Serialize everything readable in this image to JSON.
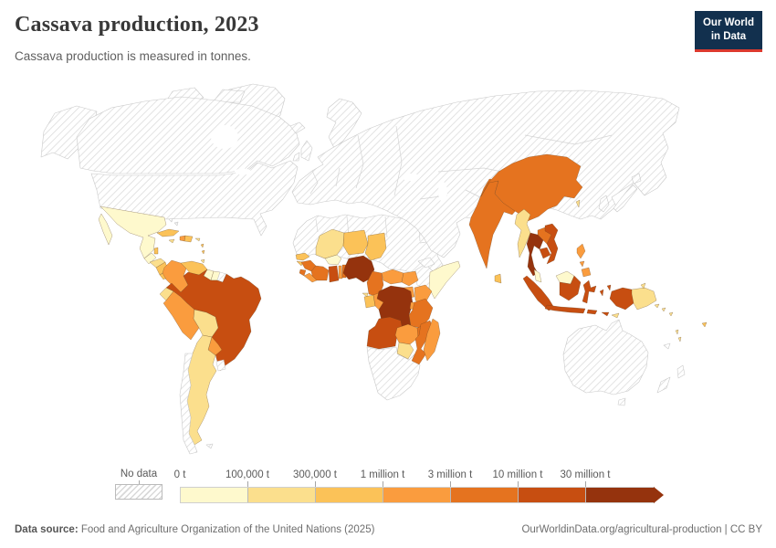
{
  "header": {
    "title": "Cassava production, 2023",
    "subtitle": "Cassava production is measured in tonnes."
  },
  "logo": {
    "line1": "Our World",
    "line2": "in Data"
  },
  "legend": {
    "no_data_label": "No data"
  },
  "footer": {
    "datasource_label": "Data source:",
    "datasource_text": " Food and Agriculture Organization of the United Nations (2025)",
    "right_text": "OurWorldinData.org/agricultural-production | CC BY"
  },
  "colors": {
    "logo_navy": "#12304e",
    "logo_red": "#dc3a2e",
    "hatch_line": "#dadada",
    "nodata_border": "#c9c9c9",
    "title_text": "#383838"
  },
  "chart_data": {
    "type": "heatmap",
    "subtype": "choropleth-world-map",
    "title": "Cassava production, 2023",
    "unit": "tonnes",
    "legend_position": "bottom",
    "bins": [
      {
        "label": "0 t",
        "color": "#fef9cd"
      },
      {
        "label": "100,000 t",
        "color": "#fbdf8d"
      },
      {
        "label": "300,000 t",
        "color": "#fbc258"
      },
      {
        "label": "1 million t",
        "color": "#fa9c3e"
      },
      {
        "label": "3 million t",
        "color": "#e5731f"
      },
      {
        "label": "10 million t",
        "color": "#c74e11"
      },
      {
        "label": "30 million t",
        "color": "#95330d"
      }
    ],
    "no_data": {
      "label": "No data",
      "pattern": "diagonal-hatch"
    },
    "countries": {
      "Canada": "no-data",
      "United States": "no-data",
      "Greenland": "no-data",
      "Bahamas": "no-data",
      "Mexico": "0 t",
      "Guatemala": "0 t",
      "Belize": "300,000 t",
      "Honduras": "100,000 t",
      "Nicaragua": "300,000 t",
      "Costa Rica": "300,000 t",
      "Panama": "100,000 t",
      "Cuba": "300,000 t",
      "Jamaica": "100,000 t",
      "Haiti": "1 million t",
      "Dominican Republic": "300,000 t",
      "Puerto Rico": "100,000 t",
      "Lesser Antilles": "300,000 t",
      "Trinidad and Tobago": "100,000 t",
      "Colombia": "1 million t",
      "Venezuela": "300,000 t",
      "Guyana": "0 t",
      "Suriname": "0 t",
      "French Guiana": "no-data",
      "Ecuador": "100,000 t",
      "Peru": "1 million t",
      "Bolivia": "100,000 t",
      "Brazil": "10 million t",
      "Paraguay": "1 million t",
      "Argentina": "100,000 t",
      "Chile": "no-data",
      "Uruguay": "no-data",
      "Falkland Islands": "no-data",
      "North Africa": "no-data",
      "Southern Africa": "no-data",
      "Ethiopia": "no-data",
      "Eritrea & Djibouti": "no-data",
      "Senegal": "300,000 t",
      "Guinea-Bissau": "300,000 t",
      "Guinea": "3 million t",
      "Sierra Leone": "3 million t",
      "Liberia": "1 million t",
      "Côte d'Ivoire": "3 million t",
      "Ghana": "10 million t",
      "Togo": "1 million t",
      "Benin": "3 million t",
      "Burkina Faso": "0 t",
      "Mali": "100,000 t",
      "Niger": "300,000 t",
      "Chad": "300,000 t",
      "Nigeria": "30 million t",
      "Cameroon": "3 million t",
      "Central African Republic": "1 million t",
      "South Sudan": "1 million t",
      "Somalia": "0 t",
      "Kenya": "1 million t",
      "Uganda": "1 million t",
      "Gabon": "300,000 t",
      "Equatorial Guinea": "100,000 t",
      "Republic of the Congo": "1 million t",
      "Democratic Republic of Congo": "30 million t",
      "Rwanda & Burundi": "1 million t",
      "Tanzania": "3 million t",
      "Angola": "10 million t",
      "Zambia": "1 million t",
      "Malawi": "3 million t",
      "Mozambique": "3 million t",
      "Zimbabwe": "100,000 t",
      "Madagascar": "1 million t",
      "Europe, Russia & Central Asia": "no-data",
      "Iceland": "no-data",
      "United Kingdom": "no-data",
      "Ireland": "no-data",
      "Scandinavia": "no-data",
      "Japan": "no-data",
      "South Korea": "no-data",
      "India": "3 million t",
      "Sri Lanka": "300,000 t",
      "China": "3 million t",
      "Taiwan": "100,000 t",
      "Myanmar": "100,000 t",
      "Thailand": "30 million t",
      "Laos": "3 million t",
      "Vietnam": "10 million t",
      "Cambodia": "10 million t",
      "Malaysia": "0 t",
      "Indonesia": "10 million t",
      "Philippines": "1 million t",
      "Papua New Guinea": "100,000 t",
      "Timor-Leste": "100,000 t",
      "Solomon Islands": "100,000 t",
      "Vanuatu": "100,000 t",
      "Fiji": "300,000 t",
      "New Caledonia": "no-data",
      "Australia": "no-data",
      "New Zealand": "no-data"
    }
  }
}
